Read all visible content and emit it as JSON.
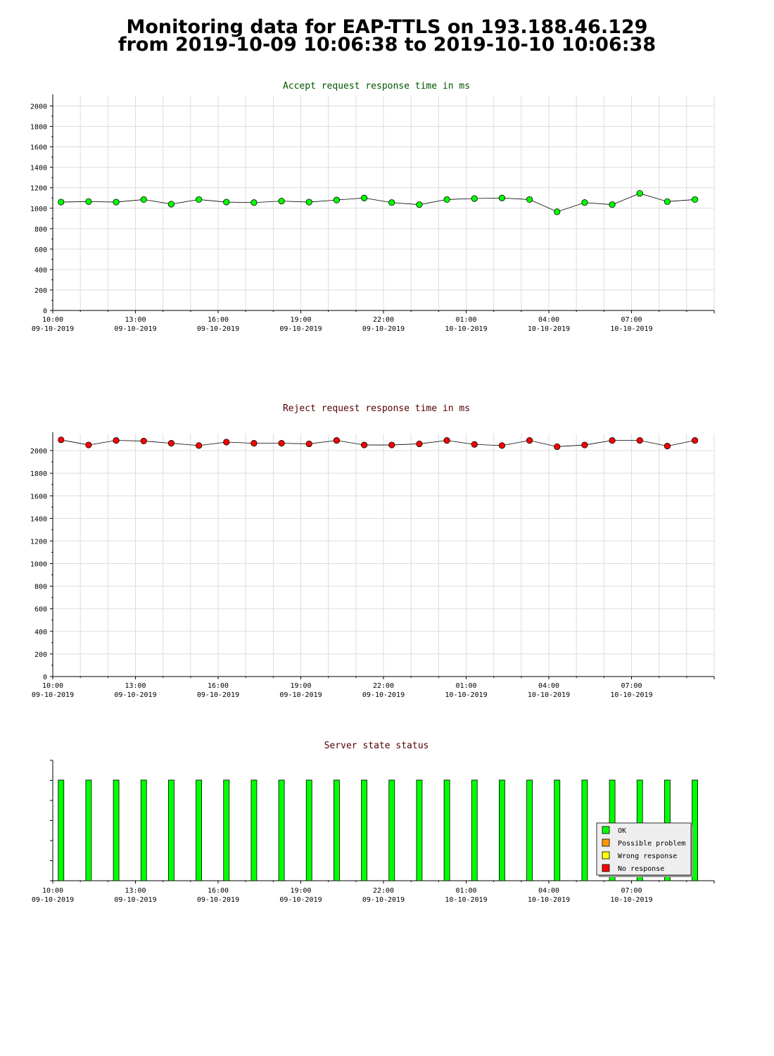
{
  "page": {
    "title_line1": "Monitoring data for EAP-TTLS on 193.188.46.129",
    "title_line2": "from 2019-10-09 10:06:38 to 2019-10-10 10:06:38"
  },
  "colors": {
    "accept_title": "#005500",
    "reject_title": "#550000",
    "status_title": "#550000",
    "accept_marker": "#00ff00",
    "reject_marker": "#ff0000",
    "ok": "#00ff00",
    "possible_problem": "#ff9900",
    "wrong_response": "#ffff00",
    "no_response": "#ff0000",
    "grid": "#dddddd"
  },
  "x_axis": {
    "ticks": [
      {
        "time": "10:00",
        "date": "09-10-2019"
      },
      {
        "time": "13:00",
        "date": "09-10-2019"
      },
      {
        "time": "16:00",
        "date": "09-10-2019"
      },
      {
        "time": "19:00",
        "date": "09-10-2019"
      },
      {
        "time": "22:00",
        "date": "09-10-2019"
      },
      {
        "time": "01:00",
        "date": "10-10-2019"
      },
      {
        "time": "04:00",
        "date": "10-10-2019"
      },
      {
        "time": "07:00",
        "date": "10-10-2019"
      }
    ]
  },
  "chart_data": [
    {
      "type": "line",
      "title": "Accept request response time in ms",
      "x": [
        "10:18",
        "11:18",
        "12:18",
        "13:18",
        "14:18",
        "15:18",
        "16:18",
        "17:18",
        "18:18",
        "19:18",
        "20:18",
        "21:18",
        "22:18",
        "23:18",
        "00:18",
        "01:18",
        "02:18",
        "03:18",
        "04:18",
        "05:18",
        "06:18",
        "07:18",
        "08:18",
        "09:18"
      ],
      "values": [
        1060,
        1065,
        1060,
        1085,
        1040,
        1085,
        1060,
        1055,
        1070,
        1060,
        1080,
        1100,
        1055,
        1035,
        1085,
        1095,
        1100,
        1085,
        965,
        1055,
        1035,
        1145,
        1065,
        1085
      ],
      "ylim": [
        0,
        2100
      ],
      "yticks": [
        0,
        200,
        400,
        600,
        800,
        1000,
        1200,
        1400,
        1600,
        1800,
        2000
      ],
      "grid": true
    },
    {
      "type": "line",
      "title": "Reject request response time in ms",
      "x": [
        "10:18",
        "11:18",
        "12:18",
        "13:18",
        "14:18",
        "15:18",
        "16:18",
        "17:18",
        "18:18",
        "19:18",
        "20:18",
        "21:18",
        "22:18",
        "23:18",
        "00:18",
        "01:18",
        "02:18",
        "03:18",
        "04:18",
        "05:18",
        "06:18",
        "07:18",
        "08:18",
        "09:18"
      ],
      "values": [
        2095,
        2050,
        2090,
        2085,
        2065,
        2045,
        2075,
        2065,
        2065,
        2060,
        2090,
        2050,
        2050,
        2060,
        2090,
        2055,
        2045,
        2090,
        2035,
        2050,
        2090,
        2090,
        2040,
        2090
      ],
      "ylim": [
        0,
        2150
      ],
      "yticks": [
        0,
        200,
        400,
        600,
        800,
        1000,
        1200,
        1400,
        1600,
        1800,
        2000
      ],
      "grid": true
    },
    {
      "type": "bar",
      "title": "Server state status",
      "x": [
        "10:18",
        "11:18",
        "12:18",
        "13:18",
        "14:18",
        "15:18",
        "16:18",
        "17:18",
        "18:18",
        "19:18",
        "20:18",
        "21:18",
        "22:18",
        "23:18",
        "00:18",
        "01:18",
        "02:18",
        "03:18",
        "04:18",
        "05:18",
        "06:18",
        "07:18",
        "08:18",
        "09:18"
      ],
      "states": [
        "OK",
        "OK",
        "OK",
        "OK",
        "OK",
        "OK",
        "OK",
        "OK",
        "OK",
        "OK",
        "OK",
        "OK",
        "OK",
        "OK",
        "OK",
        "OK",
        "OK",
        "OK",
        "OK",
        "OK",
        "OK",
        "OK",
        "OK",
        "OK"
      ],
      "legend": [
        "OK",
        "Possible problem",
        "Wrong response",
        "No response"
      ],
      "legend_position": "bottom-right",
      "grid": false
    }
  ]
}
